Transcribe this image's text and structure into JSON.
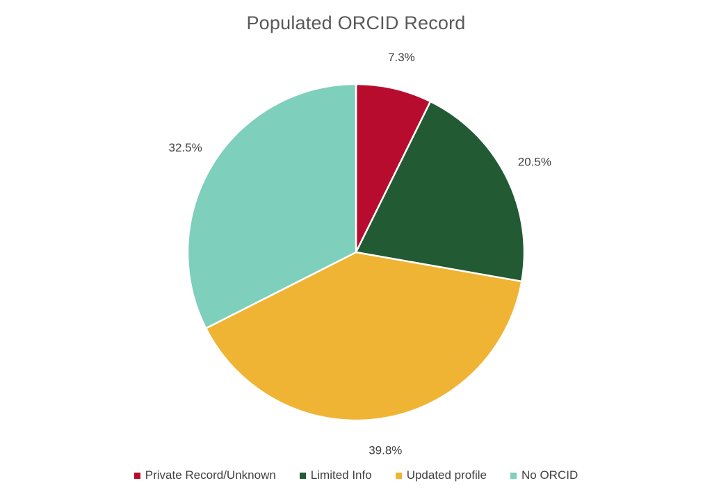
{
  "chart_data": {
    "type": "pie",
    "title": "Populated ORCID Record",
    "categories": [
      "Private Record/Unknown",
      "Limited Info",
      "Updated profile",
      "No ORCID"
    ],
    "values": [
      7.3,
      20.5,
      39.8,
      32.5
    ],
    "data_labels": [
      "7.3%",
      "20.5%",
      "39.8%",
      "32.5%"
    ],
    "colors": [
      "#b80c2f",
      "#225a34",
      "#f0b434",
      "#7ecfbb"
    ],
    "start_angle": "12 o'clock",
    "direction": "clockwise",
    "legend_position": "bottom"
  }
}
